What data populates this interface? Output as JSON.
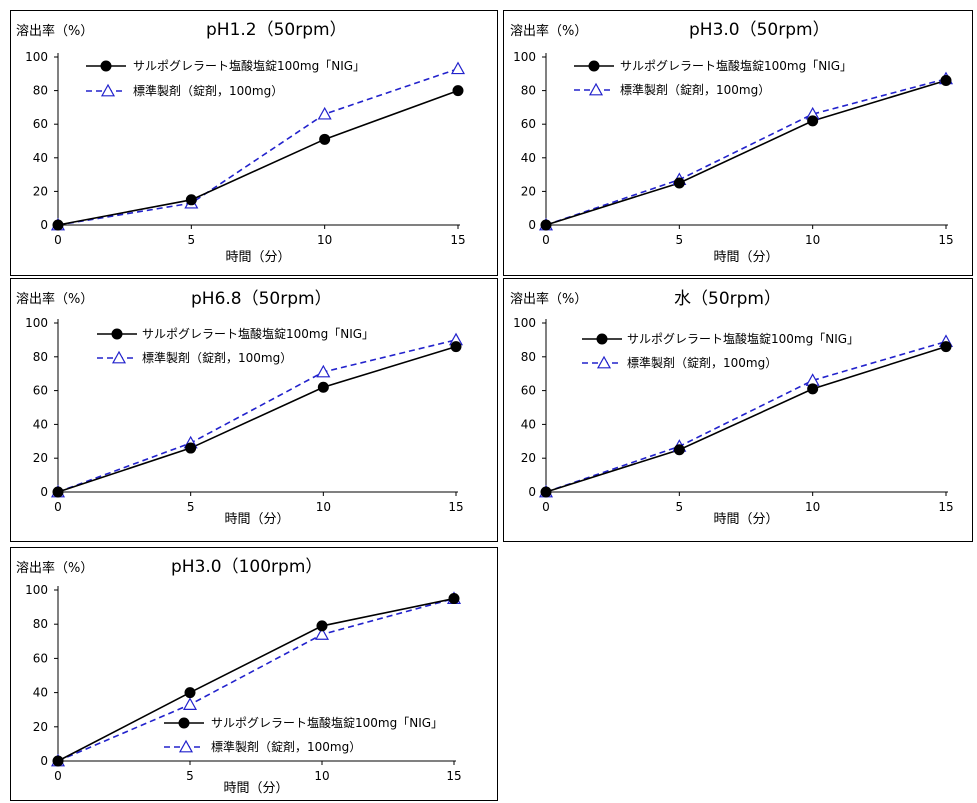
{
  "chart_data": [
    {
      "type": "line",
      "title": "pH1.2（50rpm）",
      "ylabel": "溶出率（%）",
      "xlabel": "時間（分）",
      "x": [
        0,
        5,
        10,
        15
      ],
      "xticks": [
        "0",
        "5",
        "10",
        "15"
      ],
      "yticks": [
        "0",
        "20",
        "40",
        "60",
        "80",
        "100"
      ],
      "xlim": [
        0,
        15
      ],
      "ylim": [
        0,
        100
      ],
      "legend_position": "top-left",
      "series": [
        {
          "name": "サルポグレラート塩酸塩錠100mg「NIG」",
          "values": [
            0,
            15,
            51,
            80
          ],
          "color": "#000000",
          "style": "solid",
          "marker": "filled-circle"
        },
        {
          "name": "標準製剤（錠剤，100mg）",
          "values": [
            0,
            13,
            66,
            93
          ],
          "color": "#2222cc",
          "style": "dashed",
          "marker": "open-triangle"
        }
      ]
    },
    {
      "type": "line",
      "title": "pH3.0（50rpm）",
      "ylabel": "溶出率（%）",
      "xlabel": "時間（分）",
      "x": [
        0,
        5,
        10,
        15
      ],
      "xticks": [
        "0",
        "5",
        "10",
        "15"
      ],
      "yticks": [
        "0",
        "20",
        "40",
        "60",
        "80",
        "100"
      ],
      "xlim": [
        0,
        15
      ],
      "ylim": [
        0,
        100
      ],
      "legend_position": "top-left",
      "series": [
        {
          "name": "サルポグレラート塩酸塩錠100mg「NIG」",
          "values": [
            0,
            25,
            62,
            86
          ],
          "color": "#000000",
          "style": "solid",
          "marker": "filled-circle"
        },
        {
          "name": "標準製剤（錠剤，100mg）",
          "values": [
            0,
            27,
            66,
            87
          ],
          "color": "#2222cc",
          "style": "dashed",
          "marker": "open-triangle"
        }
      ]
    },
    {
      "type": "line",
      "title": "pH6.8（50rpm）",
      "ylabel": "溶出率（%）",
      "xlabel": "時間（分）",
      "x": [
        0,
        5,
        10,
        15
      ],
      "xticks": [
        "0",
        "5",
        "10",
        "15"
      ],
      "yticks": [
        "0",
        "20",
        "40",
        "60",
        "80",
        "100"
      ],
      "xlim": [
        0,
        15
      ],
      "ylim": [
        0,
        100
      ],
      "legend_position": "top-left",
      "series": [
        {
          "name": "サルポグレラート塩酸塩錠100mg「NIG」",
          "values": [
            0,
            26,
            62,
            86
          ],
          "color": "#000000",
          "style": "solid",
          "marker": "filled-circle"
        },
        {
          "name": "標準製剤（錠剤，100mg）",
          "values": [
            0,
            29,
            71,
            90
          ],
          "color": "#2222cc",
          "style": "dashed",
          "marker": "open-triangle"
        }
      ]
    },
    {
      "type": "line",
      "title": "水（50rpm）",
      "ylabel": "溶出率（%）",
      "xlabel": "時間（分）",
      "x": [
        0,
        5,
        10,
        15
      ],
      "xticks": [
        "0",
        "5",
        "10",
        "15"
      ],
      "yticks": [
        "0",
        "20",
        "40",
        "60",
        "80",
        "100"
      ],
      "xlim": [
        0,
        15
      ],
      "ylim": [
        0,
        100
      ],
      "legend_position": "top-left",
      "series": [
        {
          "name": "サルポグレラート塩酸塩錠100mg「NIG」",
          "values": [
            0,
            25,
            61,
            86
          ],
          "color": "#000000",
          "style": "solid",
          "marker": "filled-circle"
        },
        {
          "name": "標準製剤（錠剤，100mg）",
          "values": [
            0,
            27,
            66,
            89
          ],
          "color": "#2222cc",
          "style": "dashed",
          "marker": "open-triangle"
        }
      ]
    },
    {
      "type": "line",
      "title": "pH3.0（100rpm）",
      "ylabel": "溶出率（%）",
      "xlabel": "時間（分）",
      "x": [
        0,
        5,
        10,
        15
      ],
      "xticks": [
        "0",
        "5",
        "10",
        "15"
      ],
      "yticks": [
        "0",
        "20",
        "40",
        "60",
        "80",
        "100"
      ],
      "xlim": [
        0,
        15
      ],
      "ylim": [
        0,
        100
      ],
      "legend_position": "bottom-right",
      "series": [
        {
          "name": "サルポグレラート塩酸塩錠100mg「NIG」",
          "values": [
            0,
            40,
            79,
            95
          ],
          "color": "#000000",
          "style": "solid",
          "marker": "filled-circle"
        },
        {
          "name": "標準製剤（錠剤，100mg）",
          "values": [
            0,
            33,
            74,
            95
          ],
          "color": "#2222cc",
          "style": "dashed",
          "marker": "open-triangle"
        }
      ]
    }
  ]
}
